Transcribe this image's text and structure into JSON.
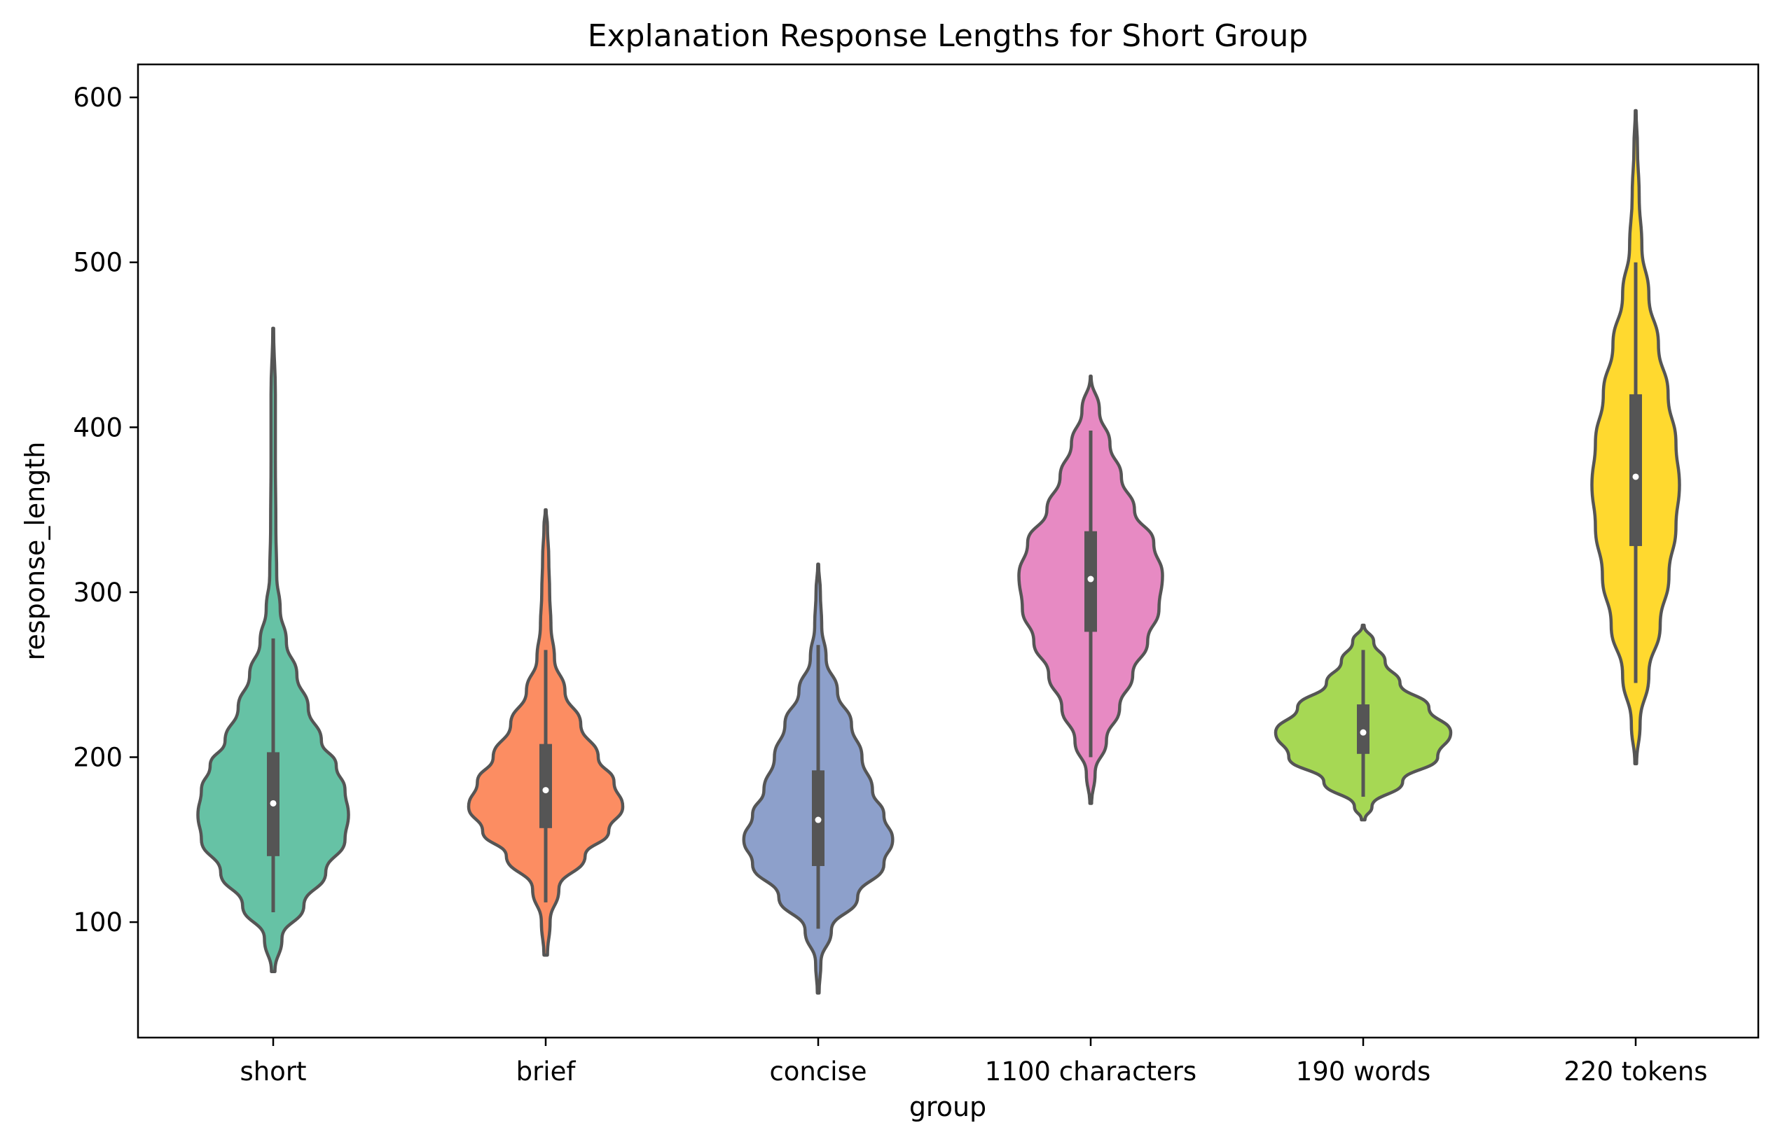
{
  "chart_data": {
    "type": "violin",
    "title": "Explanation Response Lengths for Short Group",
    "xlabel": "group",
    "ylabel": "response_length",
    "ylim": [
      30,
      620
    ],
    "yticks": [
      100,
      200,
      300,
      400,
      500,
      600
    ],
    "grid": false,
    "legend": "none",
    "categories": [
      "short",
      "brief",
      "concise",
      "1100 characters",
      "190 words",
      "220 tokens"
    ],
    "colors": [
      "#66c2a5",
      "#fc8d62",
      "#8da0cb",
      "#e78ac3",
      "#a6d854",
      "#ffd92f"
    ],
    "edge_color": "#555555",
    "series": [
      {
        "median": 172,
        "q1": 140,
        "q3": 203,
        "whisker_low": 106,
        "whisker_high": 272,
        "density": [
          [
            70,
            0.02
          ],
          [
            90,
            0.1
          ],
          [
            110,
            0.35
          ],
          [
            130,
            0.6
          ],
          [
            150,
            0.82
          ],
          [
            165,
            0.86
          ],
          [
            180,
            0.82
          ],
          [
            195,
            0.72
          ],
          [
            210,
            0.55
          ],
          [
            230,
            0.4
          ],
          [
            250,
            0.27
          ],
          [
            270,
            0.15
          ],
          [
            290,
            0.08
          ],
          [
            310,
            0.04
          ],
          [
            340,
            0.03
          ],
          [
            380,
            0.025
          ],
          [
            420,
            0.025
          ],
          [
            460,
            0.005
          ]
        ]
      },
      {
        "median": 180,
        "q1": 157,
        "q3": 208,
        "whisker_low": 112,
        "whisker_high": 265,
        "density": [
          [
            80,
            0.02
          ],
          [
            100,
            0.05
          ],
          [
            120,
            0.15
          ],
          [
            140,
            0.45
          ],
          [
            155,
            0.72
          ],
          [
            170,
            0.88
          ],
          [
            185,
            0.78
          ],
          [
            200,
            0.6
          ],
          [
            220,
            0.4
          ],
          [
            240,
            0.22
          ],
          [
            260,
            0.1
          ],
          [
            280,
            0.06
          ],
          [
            300,
            0.045
          ],
          [
            320,
            0.035
          ],
          [
            340,
            0.02
          ],
          [
            350,
            0.005
          ]
        ]
      },
      {
        "median": 162,
        "q1": 134,
        "q3": 192,
        "whisker_low": 96,
        "whisker_high": 268,
        "density": [
          [
            57,
            0.01
          ],
          [
            75,
            0.03
          ],
          [
            95,
            0.15
          ],
          [
            115,
            0.45
          ],
          [
            135,
            0.75
          ],
          [
            150,
            0.85
          ],
          [
            165,
            0.75
          ],
          [
            180,
            0.62
          ],
          [
            200,
            0.5
          ],
          [
            220,
            0.38
          ],
          [
            240,
            0.22
          ],
          [
            260,
            0.09
          ],
          [
            280,
            0.04
          ],
          [
            300,
            0.025
          ],
          [
            317,
            0.005
          ]
        ]
      },
      {
        "median": 308,
        "q1": 276,
        "q3": 337,
        "whisker_low": 200,
        "whisker_high": 398,
        "density": [
          [
            172,
            0.01
          ],
          [
            190,
            0.05
          ],
          [
            210,
            0.18
          ],
          [
            230,
            0.33
          ],
          [
            250,
            0.48
          ],
          [
            270,
            0.65
          ],
          [
            290,
            0.78
          ],
          [
            310,
            0.82
          ],
          [
            330,
            0.72
          ],
          [
            350,
            0.5
          ],
          [
            370,
            0.35
          ],
          [
            390,
            0.22
          ],
          [
            410,
            0.1
          ],
          [
            431,
            0.005
          ]
        ]
      },
      {
        "median": 215,
        "q1": 202,
        "q3": 232,
        "whisker_low": 176,
        "whisker_high": 265,
        "density": [
          [
            162,
            0.02
          ],
          [
            170,
            0.1
          ],
          [
            185,
            0.45
          ],
          [
            200,
            0.85
          ],
          [
            215,
            1.0
          ],
          [
            230,
            0.75
          ],
          [
            245,
            0.42
          ],
          [
            258,
            0.25
          ],
          [
            270,
            0.12
          ],
          [
            280,
            0.01
          ]
        ]
      },
      {
        "median": 370,
        "q1": 328,
        "q3": 420,
        "whisker_low": 245,
        "whisker_high": 500,
        "density": [
          [
            196,
            0.01
          ],
          [
            220,
            0.05
          ],
          [
            250,
            0.15
          ],
          [
            280,
            0.28
          ],
          [
            310,
            0.38
          ],
          [
            340,
            0.46
          ],
          [
            365,
            0.5
          ],
          [
            390,
            0.46
          ],
          [
            420,
            0.37
          ],
          [
            450,
            0.26
          ],
          [
            480,
            0.15
          ],
          [
            510,
            0.07
          ],
          [
            540,
            0.04
          ],
          [
            570,
            0.02
          ],
          [
            592,
            0.005
          ]
        ]
      }
    ]
  }
}
